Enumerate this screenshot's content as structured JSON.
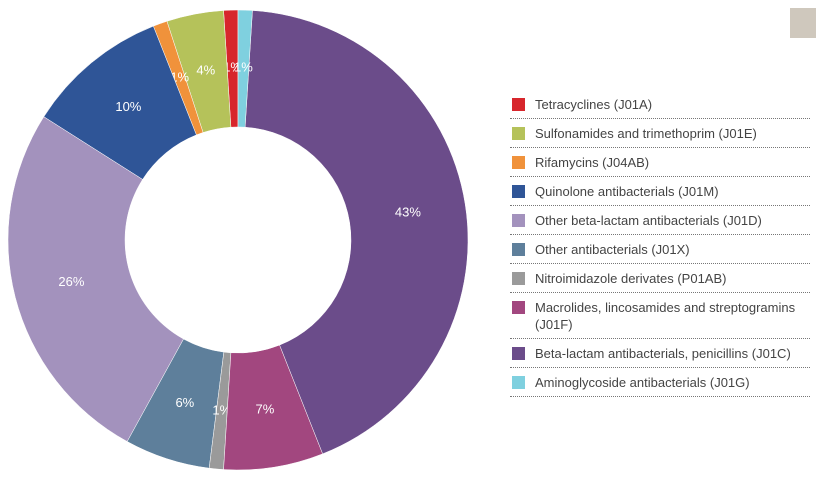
{
  "chart_data": {
    "type": "donut",
    "categories": [
      "Tetracyclines (J01A)",
      "Sulfonamides and trimethoprim (J01E)",
      "Rifamycins (J04AB)",
      "Quinolone antibacterials (J01M)",
      "Other beta-lactam antibacterials (J01D)",
      "Other antibacterials (J01X)",
      "Nitroimidazole derivates (P01AB)",
      "Macrolides, lincosamides and streptogramins (J01F)",
      "Beta-lactam antibacterials, penicillins (J01C)",
      "Aminoglycoside antibacterials (J01G)"
    ],
    "values": [
      1,
      4,
      1,
      10,
      26,
      6,
      1,
      7,
      43,
      1
    ],
    "value_labels": [
      "1%",
      "4%",
      "1%",
      "10%",
      "26%",
      "6%",
      "1%",
      "7%",
      "43%",
      "1%"
    ],
    "colors": [
      "#d7262c",
      "#b5c25a",
      "#f0923b",
      "#2f5597",
      "#a392bd",
      "#5e7f9b",
      "#9a9a9a",
      "#a2477f",
      "#6b4c8a",
      "#7fd0df"
    ],
    "legend": "right"
  }
}
